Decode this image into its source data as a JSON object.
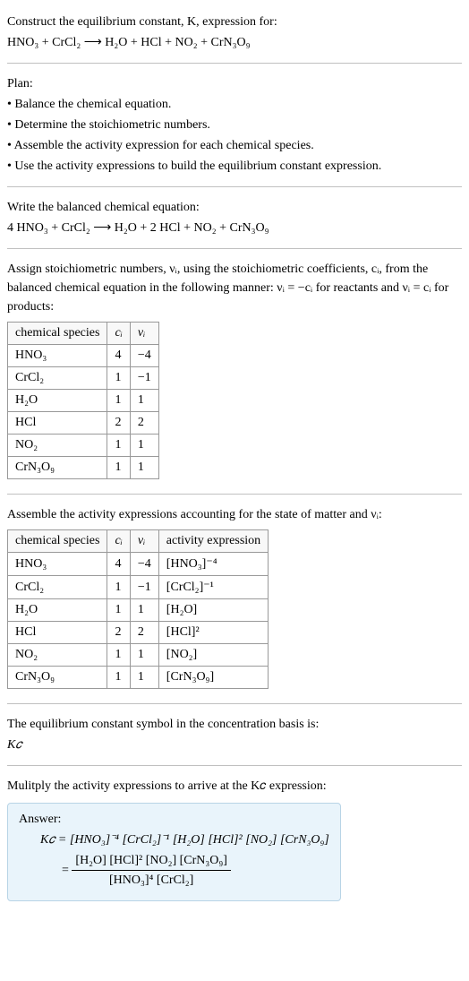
{
  "intro": {
    "l1": "Construct the equilibrium constant, K, expression for:",
    "eq": "HNO₃ + CrCl₂  ⟶  H₂O + HCl + NO₂ + CrN₃O₉"
  },
  "plan": {
    "heading": "Plan:",
    "b1": "• Balance the chemical equation.",
    "b2": "• Determine the stoichiometric numbers.",
    "b3": "• Assemble the activity expression for each chemical species.",
    "b4": "• Use the activity expressions to build the equilibrium constant expression."
  },
  "balanced": {
    "l1": "Write the balanced chemical equation:",
    "eq": "4 HNO₃ + CrCl₂  ⟶  H₂O + 2 HCl + NO₂ + CrN₃O₉"
  },
  "stoich": {
    "para": "Assign stoichiometric numbers, νᵢ, using the stoichiometric coefficients, cᵢ, from the balanced chemical equation in the following manner: νᵢ = −cᵢ for reactants and νᵢ = cᵢ for products:",
    "headers": {
      "sp": "chemical species",
      "c": "cᵢ",
      "v": "νᵢ"
    },
    "rows": [
      {
        "sp": "HNO₃",
        "c": "4",
        "v": "−4"
      },
      {
        "sp": "CrCl₂",
        "c": "1",
        "v": "−1"
      },
      {
        "sp": "H₂O",
        "c": "1",
        "v": "1"
      },
      {
        "sp": "HCl",
        "c": "2",
        "v": "2"
      },
      {
        "sp": "NO₂",
        "c": "1",
        "v": "1"
      },
      {
        "sp": "CrN₃O₉",
        "c": "1",
        "v": "1"
      }
    ]
  },
  "activity": {
    "para": "Assemble the activity expressions accounting for the state of matter and νᵢ:",
    "headers": {
      "sp": "chemical species",
      "c": "cᵢ",
      "v": "νᵢ",
      "a": "activity expression"
    },
    "rows": [
      {
        "sp": "HNO₃",
        "c": "4",
        "v": "−4",
        "a": "[HNO₃]⁻⁴"
      },
      {
        "sp": "CrCl₂",
        "c": "1",
        "v": "−1",
        "a": "[CrCl₂]⁻¹"
      },
      {
        "sp": "H₂O",
        "c": "1",
        "v": "1",
        "a": "[H₂O]"
      },
      {
        "sp": "HCl",
        "c": "2",
        "v": "2",
        "a": "[HCl]²"
      },
      {
        "sp": "NO₂",
        "c": "1",
        "v": "1",
        "a": "[NO₂]"
      },
      {
        "sp": "CrN₃O₉",
        "c": "1",
        "v": "1",
        "a": "[CrN₃O₉]"
      }
    ]
  },
  "symbol": {
    "l1": "The equilibrium constant symbol in the concentration basis is:",
    "l2": "K𝑐"
  },
  "multiply": {
    "l1": "Mulitply the activity expressions to arrive at the K𝑐 expression:"
  },
  "answer": {
    "label": "Answer:",
    "line1": "K𝑐 = [HNO₃]⁻⁴ [CrCl₂]⁻¹ [H₂O] [HCl]² [NO₂] [CrN₃O₉]",
    "eqprefix": " = ",
    "num": "[H₂O] [HCl]² [NO₂] [CrN₃O₉]",
    "den": "[HNO₃]⁴ [CrCl₂]"
  },
  "style": {
    "body_bg": "#ffffff",
    "rule_color": "#c0c0c0",
    "table_border": "#999999",
    "answer_bg": "#e9f4fb",
    "answer_border": "#b8d4e6",
    "font_size_pt": 14
  }
}
